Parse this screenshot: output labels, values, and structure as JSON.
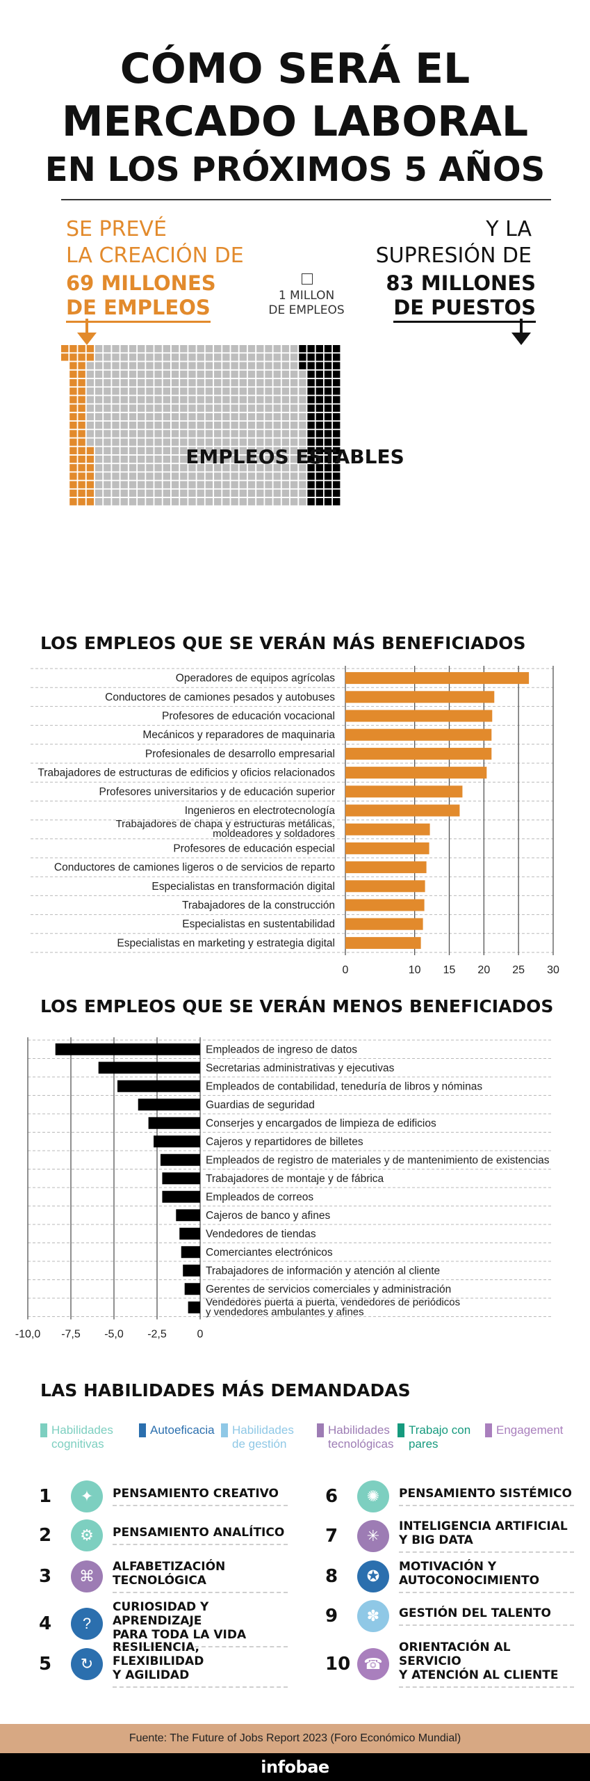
{
  "header": {
    "title_line1": "CÓMO SERÁ EL",
    "title_line2": "MERCADO LABORAL",
    "title_line3": "EN LOS PRÓXIMOS 5 AÑOS"
  },
  "overview": {
    "creation_line1": "SE PREVÉ",
    "creation_line2": "LA CREACIÓN DE",
    "creation_line3": "69 MILLONES",
    "creation_line4": "DE EMPLEOS",
    "suppression_line1": "Y LA",
    "suppression_line2": "SUPRESIÓN DE",
    "suppression_line3": "83 MILLONES",
    "suppression_line4": "DE PUESTOS",
    "unit_line1": "1 MILLON",
    "unit_line2": "DE EMPLEOS",
    "stable_label": "EMPLEOS ESTABLES",
    "colors": {
      "created": "#e28a2c",
      "stable": "#bdbdbd",
      "suppressed": "#000000"
    }
  },
  "chart_data": [
    {
      "type": "bar",
      "orientation": "horizontal",
      "title": "LOS EMPLEOS QUE SE VERÁN MÁS BENEFICIADOS",
      "color": "#e28a2c",
      "xlim": [
        0,
        30
      ],
      "xticks": [
        "0",
        "10",
        "15",
        "20",
        "25",
        "30"
      ],
      "xtick_values": [
        0,
        10,
        15,
        20,
        25,
        30
      ],
      "categories": [
        "Operadores de equipos agrícolas",
        "Conductores de camiones pesados y autobuses",
        "Profesores de educación vocacional",
        "Mecánicos y reparadores de maquinaria",
        "Profesionales de desarrollo empresarial",
        "Trabajadores de estructuras de edificios y oficios relacionados",
        "Profesores universitarios y de educación superior",
        "Ingenieros en electrotecnología",
        "Trabajadores de chapa y estructuras metálicas, moldeadores y soldadores",
        "Profesores de educación especial",
        "Conductores de camiones ligeros o de servicios de reparto",
        "Especialistas en transformación digital",
        "Trabajadores de la construcción",
        "Especialistas en sustentabilidad",
        "Especialistas en marketing y estrategia digital"
      ],
      "values": [
        26.5,
        21.5,
        21.2,
        21.1,
        21.1,
        20.4,
        16.9,
        16.5,
        12.2,
        12.1,
        11.7,
        11.5,
        11.4,
        11.2,
        10.9
      ]
    },
    {
      "type": "bar",
      "orientation": "horizontal",
      "title": "LOS EMPLEOS QUE SE VERÁN MENOS BENEFICIADOS",
      "color": "#000000",
      "xlim": [
        -10,
        0
      ],
      "xticks": [
        "-10,0",
        "-7,5",
        "-5,0",
        "-2,5",
        "0"
      ],
      "xtick_values": [
        -10,
        -7.5,
        -5,
        -2.5,
        0
      ],
      "categories": [
        "Empleados de ingreso de datos",
        "Secretarias administrativas y ejecutivas",
        "Empleados de contabilidad, teneduría de libros y nóminas",
        "Guardias de seguridad",
        "Conserjes y encargados de limpieza de edificios",
        "Cajeros y repartidores de billetes",
        "Empleados de registro de materiales y de mantenimiento de existencias",
        "Trabajadores de montaje y de fábrica",
        "Empleados de correos",
        "Cajeros de banco y afines",
        "Vendedores de tiendas",
        "Comerciantes electrónicos",
        "Trabajadores de información y atención al cliente",
        "Gerentes de servicios comerciales y administración",
        "Vendedores puerta a puerta, vendedores de periódicos y vendedores ambulantes y afines"
      ],
      "values": [
        -8.4,
        -5.9,
        -4.8,
        -3.6,
        -3.0,
        -2.7,
        -2.3,
        -2.2,
        -2.2,
        -1.4,
        -1.2,
        -1.1,
        -1.0,
        -0.9,
        -0.7
      ]
    }
  ],
  "skills": {
    "title": "LAS HABILIDADES MÁS DEMANDADAS",
    "legend": [
      {
        "line1": "Habilidades",
        "line2": "cognitivas",
        "color": "#7dcfc0"
      },
      {
        "line1": "Autoeficacia",
        "line2": "",
        "color": "#2b6fae"
      },
      {
        "line1": "Habilidades",
        "line2": "de gestión",
        "color": "#8fc8e6"
      },
      {
        "line1": "Habilidades",
        "line2": "tecnológicas",
        "color": "#9d7cb4"
      },
      {
        "line1": "Trabajo con",
        "line2": "pares",
        "color": "#169a7e"
      },
      {
        "line1": "Engagement",
        "line2": "",
        "color": "#a97fbd"
      }
    ],
    "items": [
      {
        "num": "1",
        "line1": "PENSAMIENTO CREATIVO",
        "line2": "",
        "color": "#7dcfc0",
        "icon": "lightbulb-icon",
        "glyph": "✦"
      },
      {
        "num": "2",
        "line1": "PENSAMIENTO ANALÍTICO",
        "line2": "",
        "color": "#7dcfc0",
        "icon": "head-gear-icon",
        "glyph": "⚙"
      },
      {
        "num": "3",
        "line1": "ALFABETIZACIÓN TECNOLÓGICA",
        "line2": "",
        "color": "#9d7cb4",
        "icon": "tech-hand-icon",
        "glyph": "⌘"
      },
      {
        "num": "4",
        "line1": "CURIOSIDAD Y APRENDIZAJE",
        "line2": "PARA TODA LA VIDA",
        "color": "#2b6fae",
        "icon": "curiosity-head-icon",
        "glyph": "?"
      },
      {
        "num": "5",
        "line1": "RESILIENCIA, FLEXIBILIDAD",
        "line2": "Y AGILIDAD",
        "color": "#2b6fae",
        "icon": "resilience-icon",
        "glyph": "↻"
      },
      {
        "num": "6",
        "line1": "PENSAMIENTO SISTÉMICO",
        "line2": "",
        "color": "#7dcfc0",
        "icon": "systems-icon",
        "glyph": "✺"
      },
      {
        "num": "7",
        "line1": "INTELIGENCIA ARTIFICIAL",
        "line2": "Y BIG DATA",
        "color": "#9d7cb4",
        "icon": "ai-network-icon",
        "glyph": "✳"
      },
      {
        "num": "8",
        "line1": "MOTIVACIÓN Y",
        "line2": "AUTOCONOCIMIENTO",
        "color": "#2b6fae",
        "icon": "motivation-icon",
        "glyph": "✪"
      },
      {
        "num": "9",
        "line1": "GESTIÓN DEL TALENTO",
        "line2": "",
        "color": "#8fc8e6",
        "icon": "talent-icon",
        "glyph": "✽"
      },
      {
        "num": "10",
        "line1": "ORIENTACIÓN AL SERVICIO",
        "line2": "Y ATENCIÓN AL CLIENTE",
        "color": "#a97fbd",
        "icon": "service-icon",
        "glyph": "☎"
      }
    ]
  },
  "footer": {
    "source": "Fuente: The Future of Jobs Report 2023 (Foro Económico Mundial)",
    "brand": "infobae"
  }
}
